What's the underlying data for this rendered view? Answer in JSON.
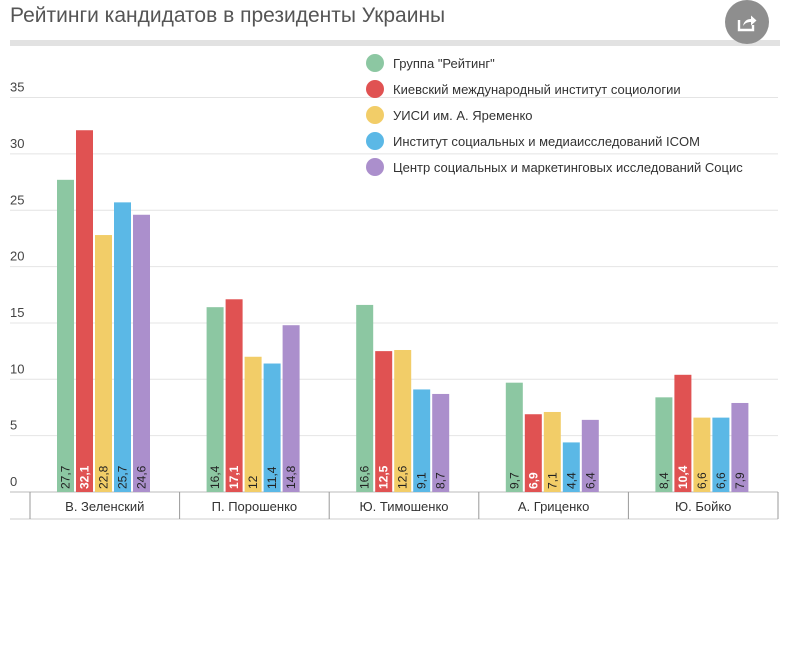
{
  "header": {
    "title": "Рейтинги кандидатов в президенты Украины",
    "share_icon": "share-icon",
    "share_color": "#8e8e8e"
  },
  "chart_data": {
    "type": "bar",
    "title": "Рейтинги кандидатов в президенты Украины",
    "categories": [
      "В. Зеленский",
      "П. Порошенко",
      "Ю. Тимошенко",
      "А. Гриценко",
      "Ю. Бойко"
    ],
    "series": [
      {
        "name": "Группа \"Рейтинг\"",
        "color": "#8cc7a2",
        "values": [
          27.7,
          16.4,
          16.6,
          9.7,
          8.4
        ],
        "labels": [
          "27,7",
          "16,4",
          "16,6",
          "9,7",
          "8,4"
        ]
      },
      {
        "name": "Киевский международный институт социологии",
        "color": "#e05252",
        "values": [
          32.1,
          17.1,
          12.5,
          6.9,
          10.4
        ],
        "labels": [
          "32,1",
          "17,1",
          "12,5",
          "6,9",
          "10,4"
        ]
      },
      {
        "name": "УИСИ им. А. Яременко",
        "color": "#f2cd68",
        "values": [
          22.8,
          12,
          12.6,
          7.1,
          6.6
        ],
        "labels": [
          "22,8",
          "12",
          "12,6",
          "7,1",
          "6,6"
        ]
      },
      {
        "name": "Институт социальных и медиаисследований ICOM",
        "color": "#5bb8e6",
        "values": [
          25.7,
          11.4,
          9.1,
          4.4,
          6.6
        ],
        "labels": [
          "25,7",
          "11,4",
          "9,1",
          "4,4",
          "6,6"
        ]
      },
      {
        "name": "Центр социальных и маркетинговых исследований Социс",
        "color": "#ab8fcc",
        "values": [
          24.6,
          14.8,
          8.7,
          6.4,
          7.9
        ],
        "labels": [
          "24,6",
          "14,8",
          "8,7",
          "6,4",
          "7,9"
        ]
      }
    ],
    "yticks": [
      "0",
      "5",
      "10",
      "15",
      "20",
      "25",
      "30",
      "35"
    ],
    "ylim": [
      0,
      36
    ],
    "grid": true,
    "legend_position": "top-right"
  }
}
